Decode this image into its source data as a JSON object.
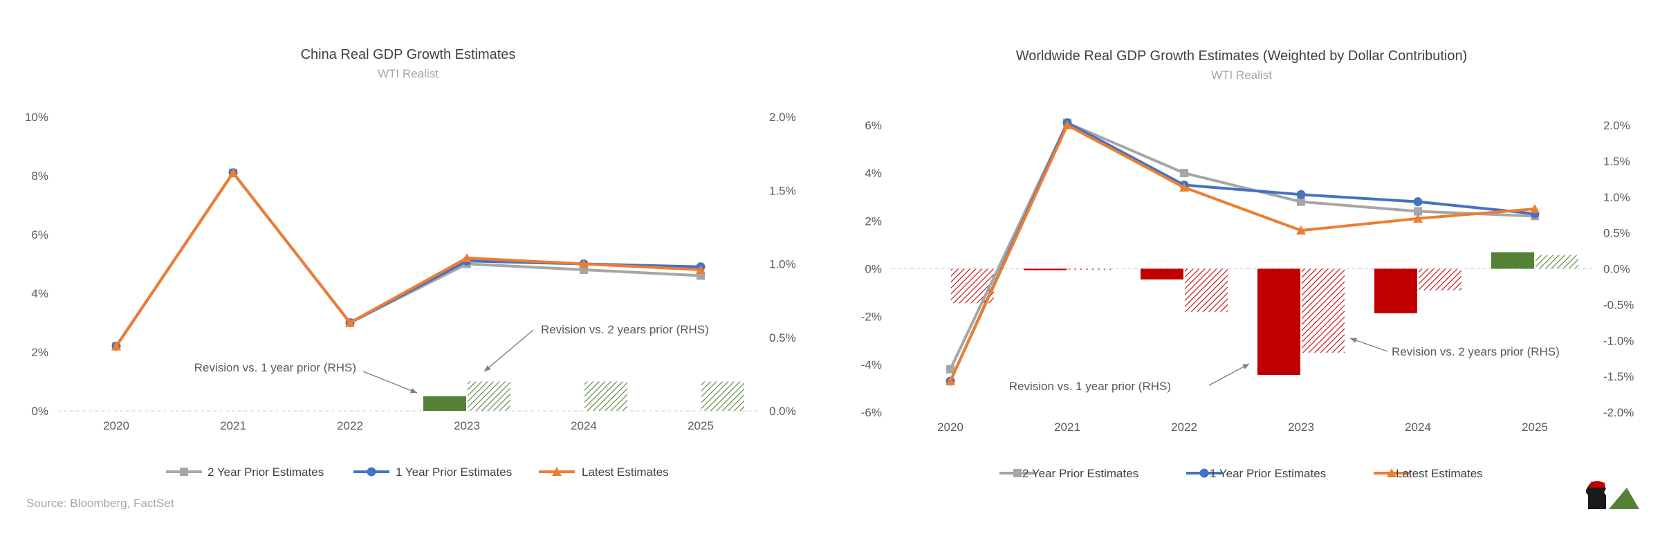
{
  "source": "Source: Bloomberg, FactSet",
  "colors": {
    "two_year": "#a6a6a6",
    "one_year": "#4472c4",
    "latest": "#ed7d31",
    "bar_pos": "#548235",
    "bar_neg": "#c00000",
    "axis_text": "#595959",
    "gridline": "#d9d9d9"
  },
  "chart_data": [
    {
      "type": "line",
      "title": "China Real GDP Growth Estimates",
      "subtitle": "WTI Realist",
      "categories": [
        "2020",
        "2021",
        "2022",
        "2023",
        "2024",
        "2025"
      ],
      "ylim": [
        0,
        10
      ],
      "yticks": [
        "0%",
        "2%",
        "4%",
        "6%",
        "8%",
        "10%"
      ],
      "y2lim": [
        0,
        2.0
      ],
      "y2ticks": [
        "0.0%",
        "0.5%",
        "1.0%",
        "1.5%",
        "2.0%"
      ],
      "series": [
        {
          "name": "2 Year Prior Estimates",
          "values": [
            2.2,
            8.1,
            3.0,
            5.0,
            4.8,
            4.6
          ],
          "marker": "square"
        },
        {
          "name": "1 Year Prior Estimates",
          "values": [
            2.2,
            8.1,
            3.0,
            5.1,
            5.0,
            4.9
          ],
          "marker": "circle"
        },
        {
          "name": "Latest Estimates",
          "values": [
            2.2,
            8.1,
            3.0,
            5.2,
            5.0,
            4.8
          ],
          "marker": "triangle"
        }
      ],
      "bars": [
        {
          "name": "Revision vs. 1 year prior (RHS)",
          "values": [
            null,
            null,
            null,
            0.1,
            null,
            null
          ]
        },
        {
          "name": "Revision vs. 2 years prior (RHS)",
          "values": [
            null,
            null,
            null,
            0.2,
            0.2,
            0.2
          ]
        }
      ],
      "annotations": [
        "Revision vs. 1 year prior (RHS)",
        "Revision vs. 2 years prior (RHS)"
      ],
      "legend": "bottom",
      "grid": false
    },
    {
      "type": "line",
      "title": "Worldwide Real GDP Growth Estimates (Weighted by Dollar Contribution)",
      "subtitle": "WTI Realist",
      "categories": [
        "2020",
        "2021",
        "2022",
        "2023",
        "2024",
        "2025"
      ],
      "ylim": [
        -6,
        7
      ],
      "yticks": [
        "-6%",
        "-4%",
        "-2%",
        "0%",
        "2%",
        "4%",
        "6%"
      ],
      "y2lim": [
        -2.0,
        2.2
      ],
      "y2ticks": [
        "-2.0%",
        "-1.5%",
        "-1.0%",
        "-0.5%",
        "0.0%",
        "0.5%",
        "1.0%",
        "1.5%",
        "2.0%"
      ],
      "series": [
        {
          "name": "2 Year Prior Estimates",
          "values": [
            -4.2,
            6.1,
            4.0,
            2.8,
            2.4,
            2.2
          ],
          "marker": "square"
        },
        {
          "name": "1 Year Prior Estimates",
          "values": [
            -4.7,
            6.1,
            3.5,
            3.1,
            2.8,
            2.3
          ],
          "marker": "circle"
        },
        {
          "name": "Latest Estimates",
          "values": [
            -4.7,
            6.0,
            3.4,
            1.6,
            2.1,
            2.5
          ],
          "marker": "triangle"
        }
      ],
      "bars": [
        {
          "name": "Revision vs. 1 year prior (RHS)",
          "values": [
            null,
            -0.02,
            -0.15,
            -1.48,
            -0.62,
            0.23
          ]
        },
        {
          "name": "Revision vs. 2 years prior (RHS)",
          "values": [
            -0.48,
            -0.01,
            -0.6,
            -1.17,
            -0.3,
            0.19
          ]
        }
      ],
      "annotations": [
        "Revision vs. 1 year prior (RHS)",
        "Revision vs. 2 years prior (RHS)"
      ],
      "legend": "bottom",
      "grid": false
    }
  ]
}
